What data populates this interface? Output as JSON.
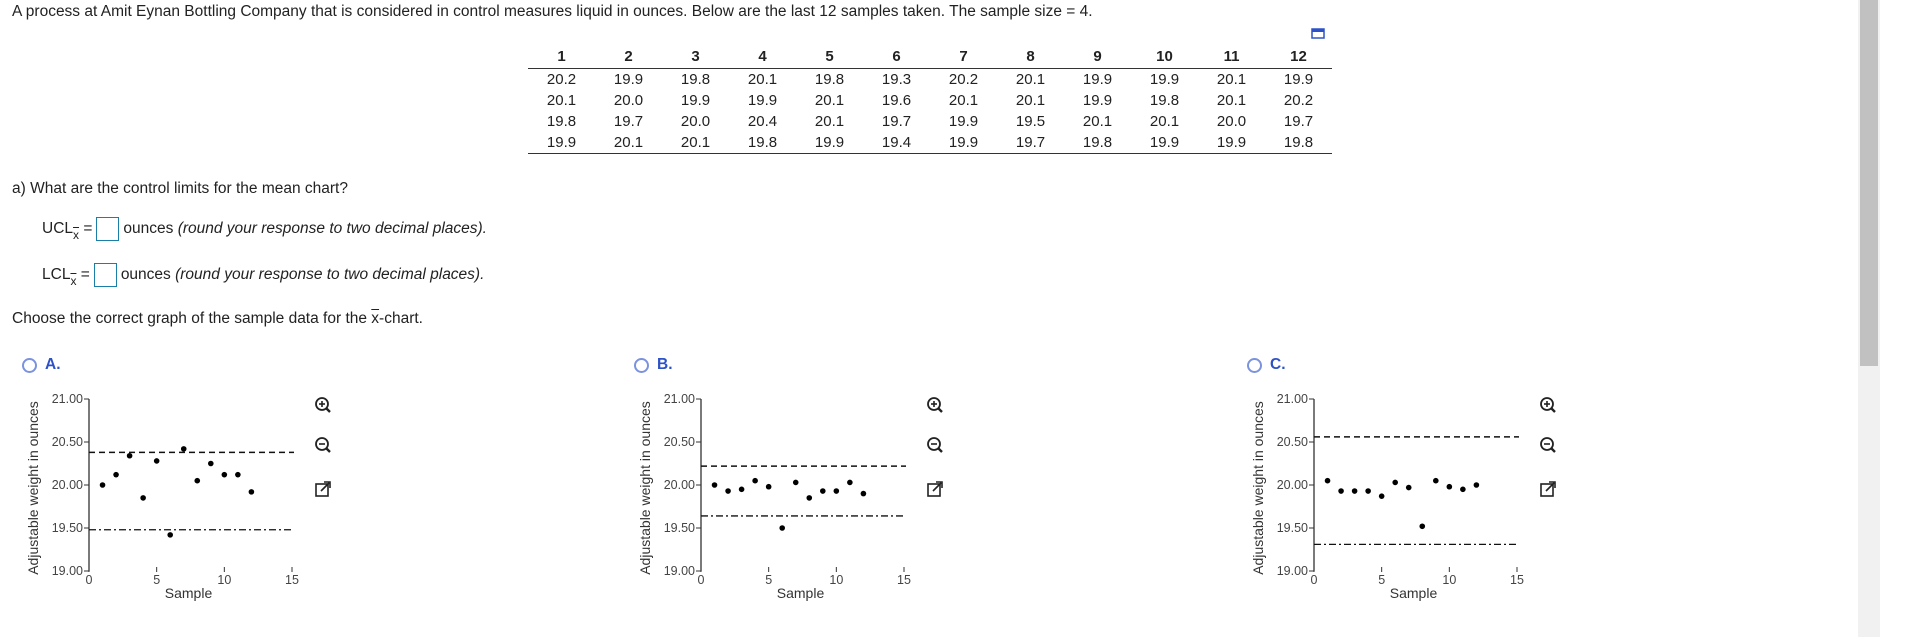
{
  "question": {
    "intro": "A process at Amit Eynan Bottling Company that is considered in control measures liquid in ounces. Below are the last 12 samples taken. The sample size = 4.",
    "part_a": "a) What are the control limits for the mean chart?",
    "ucl_label": "UCL",
    "lcl_label": "LCL",
    "subscript": "x",
    "equals": "=",
    "ucl_value": "",
    "lcl_value": "",
    "units": "ounces",
    "hint": "(round your response to two decimal places).",
    "choose_prefix": "Choose the correct graph of the sample data for the ",
    "choose_x": "x",
    "choose_suffix": "-chart."
  },
  "table": {
    "headers": [
      "1",
      "2",
      "3",
      "4",
      "5",
      "6",
      "7",
      "8",
      "9",
      "10",
      "11",
      "12"
    ],
    "rows": [
      [
        "20.2",
        "19.9",
        "19.8",
        "20.1",
        "19.8",
        "19.3",
        "20.2",
        "20.1",
        "19.9",
        "19.9",
        "20.1",
        "19.9"
      ],
      [
        "20.1",
        "20.0",
        "19.9",
        "19.9",
        "20.1",
        "19.6",
        "20.1",
        "20.1",
        "19.9",
        "19.8",
        "20.1",
        "20.2"
      ],
      [
        "19.8",
        "19.7",
        "20.0",
        "20.4",
        "20.1",
        "19.7",
        "19.9",
        "19.5",
        "20.1",
        "20.1",
        "20.0",
        "19.7"
      ],
      [
        "19.9",
        "20.1",
        "20.1",
        "19.8",
        "19.9",
        "19.4",
        "19.9",
        "19.7",
        "19.8",
        "19.9",
        "19.9",
        "19.8"
      ]
    ]
  },
  "options": [
    {
      "label": "A.",
      "selected": false
    },
    {
      "label": "B.",
      "selected": false
    },
    {
      "label": "C.",
      "selected": false
    }
  ],
  "icons": {
    "expand": "popout-icon",
    "zoom_in": "zoom-in-icon",
    "zoom_out": "zoom-out-icon",
    "open": "open-external-icon"
  },
  "colors": {
    "option_label": "#2d52c7",
    "radio": "#7b93df",
    "answer_box": "#1a7fa8"
  },
  "chart_data": [
    {
      "type": "scatter",
      "option": "A",
      "xlabel": "Sample",
      "ylabel": "Adjustable weight in ounces",
      "xlim": [
        0,
        15
      ],
      "ylim": [
        19.0,
        21.0
      ],
      "xticks": [
        "0",
        "5",
        "10",
        "15"
      ],
      "yticks": [
        "19.00",
        "19.50",
        "20.00",
        "20.50",
        "21.00"
      ],
      "x": [
        1,
        2,
        3,
        4,
        5,
        6,
        7,
        8,
        9,
        10,
        11,
        12
      ],
      "y": [
        20.0,
        20.12,
        20.34,
        19.85,
        20.28,
        19.42,
        20.42,
        20.05,
        20.25,
        20.12,
        20.12,
        19.92
      ],
      "ucl": 20.38,
      "lcl": 19.48
    },
    {
      "type": "scatter",
      "option": "B",
      "xlabel": "Sample",
      "ylabel": "Adjustable weight in ounces",
      "xlim": [
        0,
        15
      ],
      "ylim": [
        19.0,
        21.0
      ],
      "xticks": [
        "0",
        "5",
        "10",
        "15"
      ],
      "yticks": [
        "19.00",
        "19.50",
        "20.00",
        "20.50",
        "21.00"
      ],
      "x": [
        1,
        2,
        3,
        4,
        5,
        6,
        7,
        8,
        9,
        10,
        11,
        12
      ],
      "y": [
        20.0,
        19.93,
        19.95,
        20.05,
        19.98,
        19.5,
        20.03,
        19.85,
        19.93,
        19.93,
        20.03,
        19.9
      ],
      "ucl": 20.22,
      "lcl": 19.64
    },
    {
      "type": "scatter",
      "option": "C",
      "xlabel": "Sample",
      "ylabel": "Adjustable weight in ounces",
      "xlim": [
        0,
        15
      ],
      "ylim": [
        19.0,
        21.0
      ],
      "xticks": [
        "0",
        "5",
        "10",
        "15"
      ],
      "yticks": [
        "19.00",
        "19.50",
        "20.00",
        "20.50",
        "21.00"
      ],
      "x": [
        1,
        2,
        3,
        4,
        5,
        6,
        7,
        8,
        9,
        10,
        11,
        12
      ],
      "y": [
        20.05,
        19.93,
        19.93,
        19.93,
        19.87,
        20.03,
        19.97,
        19.52,
        20.05,
        19.98,
        19.95,
        20.0
      ],
      "ucl": 20.56,
      "lcl": 19.31
    }
  ]
}
